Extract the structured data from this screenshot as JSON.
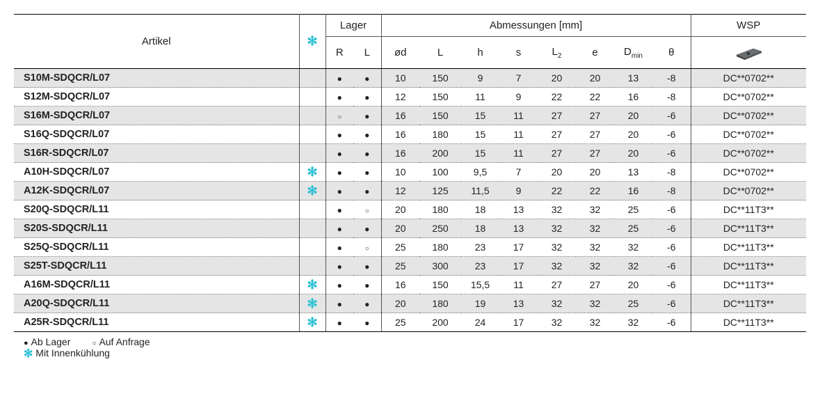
{
  "columns": {
    "artikel": "Artikel",
    "lager": "Lager",
    "abmessungen": "Abmessungen [mm]",
    "wsp": "WSP",
    "r": "R",
    "l": "L",
    "od": "ød",
    "lcap": "L",
    "h": "h",
    "s": "s",
    "l2_pre": "L",
    "l2_sub": "2",
    "e": "e",
    "dmin_pre": "D",
    "dmin_sub": "min",
    "theta": "θ"
  },
  "widths": {
    "artikel": 410,
    "cool": 38,
    "r": 40,
    "l": 40,
    "od": 55,
    "bigL": 60,
    "h": 55,
    "s": 55,
    "l2": 55,
    "e": 55,
    "dmin": 55,
    "theta": 55,
    "wsp": 166
  },
  "legend": {
    "ab_lager": "Ab Lager",
    "auf_anfrage": "Auf Anfrage",
    "innenkuehlung": "Mit Innenkühlung"
  },
  "stripe_color": "#e5e5e5",
  "rows": [
    {
      "artikel": "S10M-SDQCR/L07",
      "cool": "",
      "r": "●",
      "l": "●",
      "od": "10",
      "L": "150",
      "h": "9",
      "s": "7",
      "l2": "20",
      "e": "20",
      "dmin": "13",
      "theta": "-8",
      "wsp": "DC**0702**",
      "stripe": true
    },
    {
      "artikel": "S12M-SDQCR/L07",
      "cool": "",
      "r": "●",
      "l": "●",
      "od": "12",
      "L": "150",
      "h": "11",
      "s": "9",
      "l2": "22",
      "e": "22",
      "dmin": "16",
      "theta": "-8",
      "wsp": "DC**0702**",
      "stripe": false
    },
    {
      "artikel": "S16M-SDQCR/L07",
      "cool": "",
      "r": "○",
      "l": "●",
      "od": "16",
      "L": "150",
      "h": "15",
      "s": "11",
      "l2": "27",
      "e": "27",
      "dmin": "20",
      "theta": "-6",
      "wsp": "DC**0702**",
      "stripe": true
    },
    {
      "artikel": "S16Q-SDQCR/L07",
      "cool": "",
      "r": "●",
      "l": "●",
      "od": "16",
      "L": "180",
      "h": "15",
      "s": "11",
      "l2": "27",
      "e": "27",
      "dmin": "20",
      "theta": "-6",
      "wsp": "DC**0702**",
      "stripe": false
    },
    {
      "artikel": "S16R-SDQCR/L07",
      "cool": "",
      "r": "●",
      "l": "●",
      "od": "16",
      "L": "200",
      "h": "15",
      "s": "11",
      "l2": "27",
      "e": "27",
      "dmin": "20",
      "theta": "-6",
      "wsp": "DC**0702**",
      "stripe": true
    },
    {
      "artikel": "A10H-SDQCR/L07",
      "cool": "✻",
      "r": "●",
      "l": "●",
      "od": "10",
      "L": "100",
      "h": "9,5",
      "s": "7",
      "l2": "20",
      "e": "20",
      "dmin": "13",
      "theta": "-8",
      "wsp": "DC**0702**",
      "stripe": false
    },
    {
      "artikel": "A12K-SDQCR/L07",
      "cool": "✻",
      "r": "●",
      "l": "●",
      "od": "12",
      "L": "125",
      "h": "11,5",
      "s": "9",
      "l2": "22",
      "e": "22",
      "dmin": "16",
      "theta": "-8",
      "wsp": "DC**0702**",
      "stripe": true
    },
    {
      "artikel": "S20Q-SDQCR/L11",
      "cool": "",
      "r": "●",
      "l": "○",
      "od": "20",
      "L": "180",
      "h": "18",
      "s": "13",
      "l2": "32",
      "e": "32",
      "dmin": "25",
      "theta": "-6",
      "wsp": "DC**11T3**",
      "stripe": false
    },
    {
      "artikel": "S20S-SDQCR/L11",
      "cool": "",
      "r": "●",
      "l": "●",
      "od": "20",
      "L": "250",
      "h": "18",
      "s": "13",
      "l2": "32",
      "e": "32",
      "dmin": "25",
      "theta": "-6",
      "wsp": "DC**11T3**",
      "stripe": true
    },
    {
      "artikel": "S25Q-SDQCR/L11",
      "cool": "",
      "r": "●",
      "l": "○",
      "od": "25",
      "L": "180",
      "h": "23",
      "s": "17",
      "l2": "32",
      "e": "32",
      "dmin": "32",
      "theta": "-6",
      "wsp": "DC**11T3**",
      "stripe": false
    },
    {
      "artikel": "S25T-SDQCR/L11",
      "cool": "",
      "r": "●",
      "l": "●",
      "od": "25",
      "L": "300",
      "h": "23",
      "s": "17",
      "l2": "32",
      "e": "32",
      "dmin": "32",
      "theta": "-6",
      "wsp": "DC**11T3**",
      "stripe": true
    },
    {
      "artikel": "A16M-SDQCR/L11",
      "cool": "✻",
      "r": "●",
      "l": "●",
      "od": "16",
      "L": "150",
      "h": "15,5",
      "s": "11",
      "l2": "27",
      "e": "27",
      "dmin": "20",
      "theta": "-6",
      "wsp": "DC**11T3**",
      "stripe": false
    },
    {
      "artikel": "A20Q-SDQCR/L11",
      "cool": "✻",
      "r": "●",
      "l": "●",
      "od": "20",
      "L": "180",
      "h": "19",
      "s": "13",
      "l2": "32",
      "e": "32",
      "dmin": "25",
      "theta": "-6",
      "wsp": "DC**11T3**",
      "stripe": true
    },
    {
      "artikel": "A25R-SDQCR/L11",
      "cool": "✻",
      "r": "●",
      "l": "●",
      "od": "25",
      "L": "200",
      "h": "24",
      "s": "17",
      "l2": "32",
      "e": "32",
      "dmin": "32",
      "theta": "-6",
      "wsp": "DC**11T3**",
      "stripe": false
    }
  ]
}
